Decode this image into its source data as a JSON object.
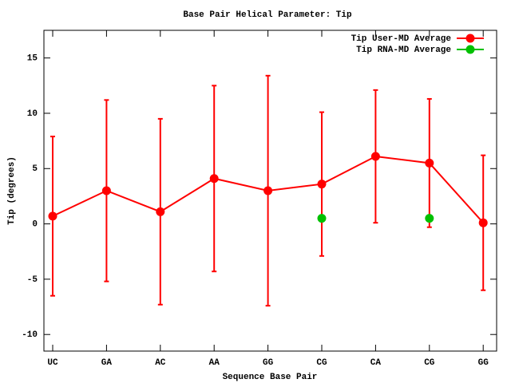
{
  "chart_data": {
    "type": "line",
    "title": "Base Pair Helical Parameter: Tip",
    "x_label": "Sequence Base Pair",
    "y_label": "Tip (degrees)",
    "categories": [
      "UC",
      "GA",
      "AC",
      "AA",
      "GG",
      "CG",
      "CA",
      "CG",
      "GG"
    ],
    "series": [
      {
        "name": "Tip User-MD Average",
        "color": "#ff0000",
        "values": [
          0.7,
          3.0,
          1.1,
          4.1,
          3.0,
          3.6,
          6.1,
          5.5,
          0.1
        ],
        "errors": [
          7.2,
          8.2,
          8.4,
          8.4,
          10.4,
          6.5,
          6.0,
          5.8,
          6.1
        ]
      },
      {
        "name": "Tip RNA-MD Average",
        "color": "#00c000",
        "values": [
          null,
          null,
          null,
          null,
          null,
          0.5,
          null,
          0.5,
          null
        ]
      }
    ],
    "ylim": [
      -11.5,
      17.5
    ],
    "yticks": [
      -10,
      -5,
      0,
      5,
      10,
      15
    ],
    "legend": "upper right"
  }
}
